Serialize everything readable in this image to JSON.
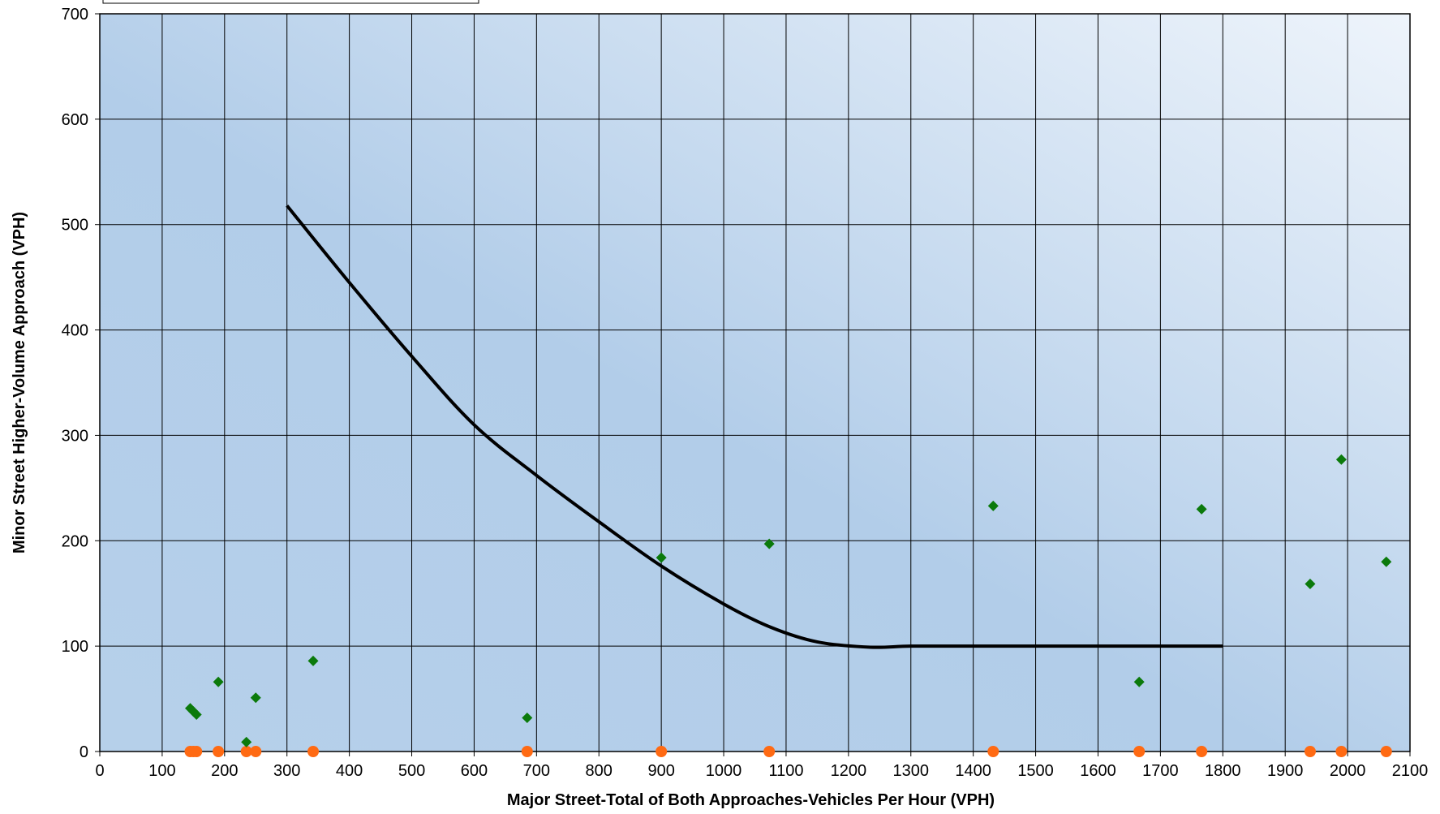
{
  "chart_data": {
    "type": "scatter",
    "xlabel": "Major Street-Total of Both Approaches-Vehicles Per Hour (VPH)",
    "ylabel": "Minor Street Higher-Volume Approach (VPH)",
    "xlim": [
      0,
      2100
    ],
    "ylim": [
      0,
      700
    ],
    "x_ticks": [
      0,
      100,
      200,
      300,
      400,
      500,
      600,
      700,
      800,
      900,
      1000,
      1100,
      1200,
      1300,
      1400,
      1500,
      1600,
      1700,
      1800,
      1900,
      2000,
      2100
    ],
    "y_ticks": [
      0,
      100,
      200,
      300,
      400,
      500,
      600,
      700
    ],
    "grid": true,
    "series": [
      {
        "kind": "line",
        "color": "#000000",
        "x": [
          300,
          400,
          500,
          600,
          700,
          800,
          900,
          1000,
          1075,
          1150,
          1235,
          1300,
          1400,
          1500,
          1600,
          1700,
          1800
        ],
        "y": [
          518,
          445,
          375,
          310,
          262,
          218,
          176,
          140,
          118,
          104,
          99,
          100,
          100,
          100,
          100,
          100,
          100
        ]
      },
      {
        "kind": "scatter",
        "marker": "diamond",
        "color": "#0b7a0b",
        "x": [
          145,
          150,
          155,
          190,
          235,
          250,
          342,
          685,
          900,
          1073,
          1432,
          1666,
          1766,
          1940,
          1990,
          2062
        ],
        "y": [
          41,
          38,
          35,
          66,
          9,
          51,
          86,
          32,
          184,
          197,
          233,
          66,
          230,
          159,
          277,
          180
        ]
      },
      {
        "kind": "scatter",
        "marker": "circle",
        "color": "#ff6a13",
        "x": [
          145,
          150,
          155,
          190,
          235,
          250,
          342,
          685,
          900,
          1073,
          1432,
          1666,
          1766,
          1940,
          1990,
          2062
        ],
        "y": [
          0,
          0,
          0,
          0,
          0,
          0,
          0,
          0,
          0,
          0,
          0,
          0,
          0,
          0,
          0,
          0
        ]
      }
    ],
    "colors": {
      "grid": "#000000",
      "plot_bg_light": "#e9f1fa",
      "plot_bg_dark": "#acc9e7"
    }
  }
}
